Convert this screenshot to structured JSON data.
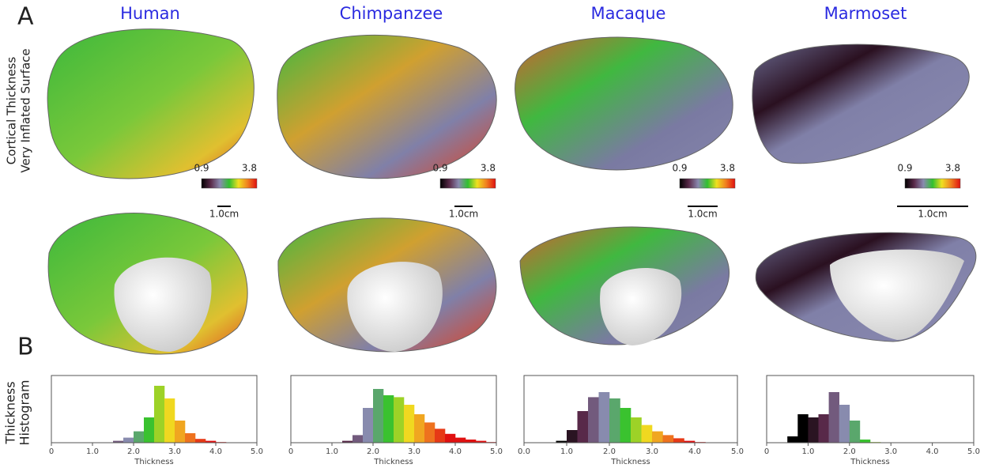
{
  "figure_labels": {
    "a": "A",
    "b": "B"
  },
  "row_label": [
    "Cortical Thickness",
    "Very Inflated Surface"
  ],
  "histogram_label": [
    "Thickness",
    "Histogram"
  ],
  "colormap": [
    "#000000",
    "#5a2a4a",
    "#8a8ab0",
    "#30c030",
    "#f0e020",
    "#f08020",
    "#e01010"
  ],
  "panels": [
    {
      "title": "Human",
      "colorbar": [
        0.9,
        3.8
      ],
      "scale_bar": "1.0cm"
    },
    {
      "title": "Chimpanzee",
      "colorbar": [
        0.9,
        3.8
      ],
      "scale_bar": "1.0cm"
    },
    {
      "title": "Macaque",
      "colorbar": [
        0.9,
        3.8
      ],
      "scale_bar": "1.0cm"
    },
    {
      "title": "Marmoset",
      "colorbar": [
        0.9,
        3.8
      ],
      "scale_bar": "1.0cm"
    }
  ],
  "chart_data": [
    {
      "type": "histogram",
      "xlabel": "Thickness",
      "bins": [
        0,
        0.25,
        0.5,
        0.75,
        1,
        1.25,
        1.5,
        1.75,
        2,
        2.25,
        2.5,
        2.75,
        3,
        3.25,
        3.5,
        3.75,
        4,
        4.25,
        4.5,
        4.75,
        5
      ],
      "counts": [
        0,
        0,
        0,
        0,
        0,
        0,
        3,
        8,
        18,
        40,
        90,
        70,
        35,
        15,
        6,
        3,
        1,
        0,
        0,
        0
      ],
      "xlim": [
        0,
        5
      ],
      "ylim": [
        0,
        100
      ],
      "xticks": [
        0,
        {
          "value": 1,
          "label": "1.0"
        },
        {
          "value": 2,
          "label": "2.0"
        },
        {
          "value": 3,
          "label": "3.0"
        },
        {
          "value": 4,
          "label": "4.0"
        },
        {
          "value": 5,
          "label": "5.0"
        }
      ]
    },
    {
      "type": "histogram",
      "xlabel": "Thickness",
      "bins": [
        0,
        0.25,
        0.5,
        0.75,
        1,
        1.25,
        1.5,
        1.75,
        2,
        2.25,
        2.5,
        2.75,
        3,
        3.25,
        3.5,
        3.75,
        4,
        4.25,
        4.5,
        4.75,
        5
      ],
      "counts": [
        0,
        0,
        0,
        0,
        0,
        3,
        12,
        55,
        85,
        75,
        72,
        60,
        45,
        32,
        22,
        14,
        8,
        5,
        3,
        1
      ],
      "xlim": [
        0,
        5
      ],
      "ylim": [
        0,
        100
      ],
      "xticks": [
        0,
        {
          "value": 1,
          "label": "1.0"
        },
        {
          "value": 2,
          "label": "2.0"
        },
        {
          "value": 3,
          "label": "3.0"
        },
        {
          "value": 4,
          "label": "4.0"
        },
        {
          "value": 5,
          "label": "5.0"
        }
      ]
    },
    {
      "type": "histogram",
      "xlabel": "Thickness",
      "bins": [
        0,
        0.25,
        0.5,
        0.75,
        1,
        1.25,
        1.5,
        1.75,
        2,
        2.25,
        2.5,
        2.75,
        3,
        3.25,
        3.5,
        3.75,
        4,
        4.25,
        4.5,
        4.75,
        5
      ],
      "counts": [
        0,
        0,
        0,
        3,
        20,
        50,
        72,
        80,
        70,
        55,
        40,
        28,
        18,
        12,
        7,
        3,
        1,
        0,
        0,
        0
      ],
      "xlim": [
        0,
        5
      ],
      "ylim": [
        0,
        100
      ],
      "xticks": [
        {
          "value": 0,
          "label": "0.0"
        },
        {
          "value": 1,
          "label": "1.0"
        },
        {
          "value": 2,
          "label": "2.0"
        },
        {
          "value": 3,
          "label": "3.0"
        },
        {
          "value": 4,
          "label": "4.0"
        },
        {
          "value": 5,
          "label": "5.0"
        }
      ]
    },
    {
      "type": "histogram",
      "xlabel": "Thickness",
      "bins": [
        0,
        0.25,
        0.5,
        0.75,
        1,
        1.25,
        1.5,
        1.75,
        2,
        2.25,
        2.5,
        2.75,
        3,
        3.25,
        3.5,
        3.75,
        4,
        4.25,
        4.5,
        4.75,
        5
      ],
      "counts": [
        0,
        0,
        10,
        45,
        40,
        45,
        80,
        60,
        35,
        5,
        1,
        0,
        0,
        0,
        0,
        0,
        0,
        0,
        0,
        0
      ],
      "xlim": [
        0,
        5
      ],
      "ylim": [
        0,
        100
      ],
      "xticks": [
        0,
        {
          "value": 1,
          "label": "1.0"
        },
        {
          "value": 2,
          "label": "2.0"
        },
        {
          "value": 3,
          "label": "3.0"
        },
        {
          "value": 4,
          "label": "4.0"
        },
        {
          "value": 5,
          "label": "5.0"
        }
      ]
    }
  ]
}
